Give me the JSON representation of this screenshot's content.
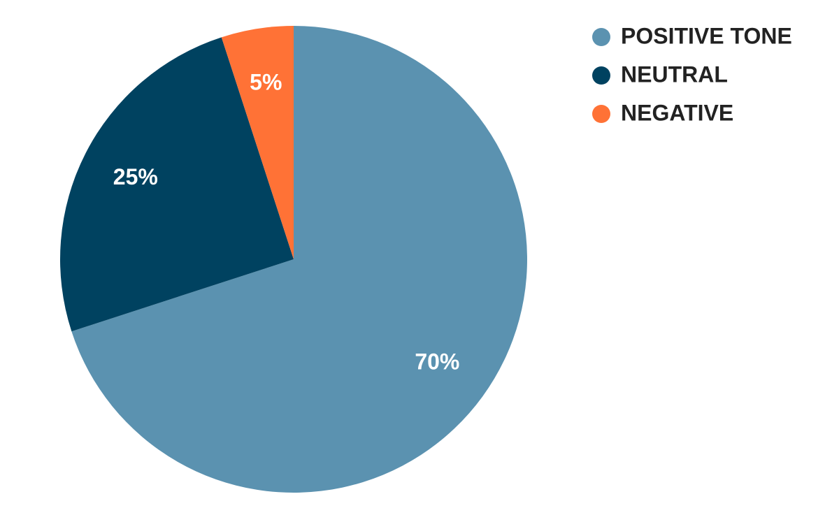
{
  "chart_data": {
    "type": "pie",
    "categories": [
      "POSITIVE TONE",
      "NEUTRAL",
      "NEGATIVE"
    ],
    "values": [
      70,
      25,
      5
    ],
    "value_labels": [
      "70%",
      "25%",
      "5%"
    ],
    "colors": [
      "#5b92b0",
      "#004260",
      "#ff7236"
    ],
    "legend": "top-right"
  }
}
